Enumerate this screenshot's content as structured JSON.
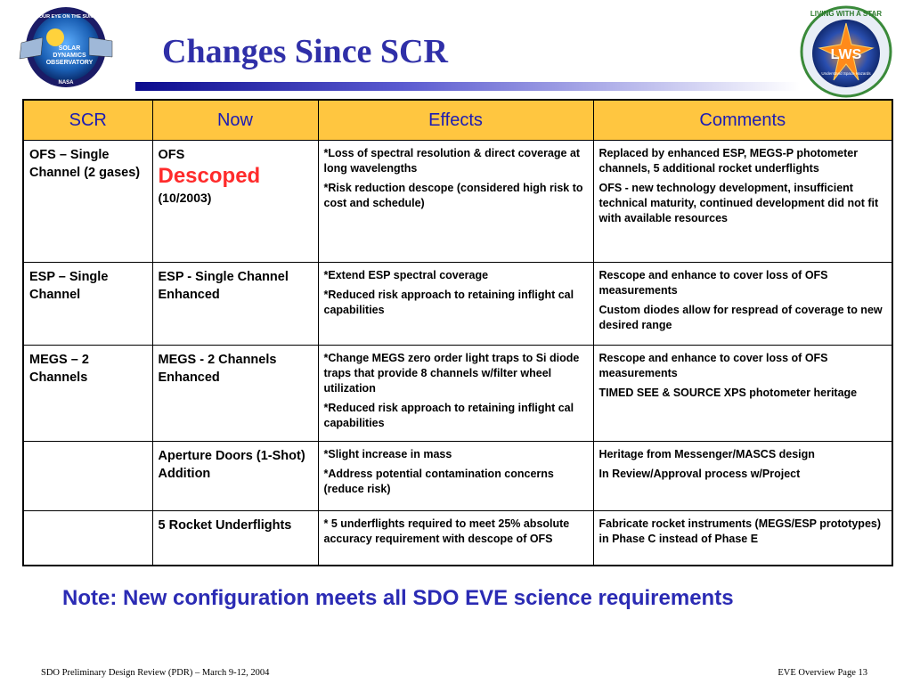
{
  "header": {
    "title": "Changes Since SCR",
    "logo_left_text": [
      "OUR EYE ON THE SUN",
      "SOLAR",
      "DYNAMICS",
      "OBSERVATORY",
      "NASA"
    ],
    "logo_right_text": [
      "LIVING WITH A STAR",
      "LWS",
      "Understand Space Hazards"
    ]
  },
  "table": {
    "headers": [
      "SCR",
      "Now",
      "Effects",
      "Comments"
    ],
    "rows": [
      {
        "scr": "OFS – Single Channel (2 gases)",
        "now_1": "OFS",
        "now_2": "Descoped",
        "now_3": "(10/2003)",
        "effects": [
          "*Loss of spectral resolution & direct coverage at long wavelengths",
          "*Risk reduction descope (considered high risk to cost and schedule)"
        ],
        "comments": [
          "Replaced by enhanced ESP,  MEGS-P photometer channels, 5 additional rocket underflights",
          "OFS - new technology development, insufficient technical maturity, continued development did not fit with available resources"
        ]
      },
      {
        "scr": "ESP – Single Channel",
        "now_1": "ESP - Single Channel Enhanced",
        "effects": [
          "*Extend ESP spectral coverage",
          "*Reduced risk approach to retaining inflight cal capabilities"
        ],
        "comments": [
          "Rescope and enhance to cover loss of OFS measurements",
          "Custom diodes allow for respread of coverage to new desired range"
        ]
      },
      {
        "scr": "MEGS – 2 Channels",
        "now_1": "MEGS - 2 Channels Enhanced",
        "effects": [
          "*Change MEGS zero order light traps to Si diode traps that provide 8 channels w/filter wheel utilization",
          "*Reduced risk approach to retaining inflight cal capabilities"
        ],
        "comments": [
          "Rescope and enhance to cover loss of OFS measurements",
          "TIMED SEE & SOURCE XPS photometer heritage"
        ]
      },
      {
        "scr": "",
        "now_1": "Aperture Doors (1-Shot) Addition",
        "effects": [
          "*Slight increase in mass",
          "*Address potential contamination concerns (reduce risk)"
        ],
        "comments": [
          "Heritage from Messenger/MASCS design",
          "In Review/Approval process w/Project"
        ]
      },
      {
        "scr": "",
        "now_1": "5 Rocket Underflights",
        "effects": [
          "* 5 underflights required to meet 25% absolute accuracy requirement with descope of OFS"
        ],
        "comments": [
          "Fabricate rocket instruments (MEGS/ESP prototypes) in Phase C instead of Phase E"
        ]
      }
    ]
  },
  "note": "Note:  New configuration meets all SDO EVE science requirements",
  "footer": {
    "left": "SDO Preliminary Design Review (PDR) – March 9-12, 2004",
    "right": "EVE Overview Page 13"
  },
  "colors": {
    "title": "#2f2fa8",
    "header_bg": "#ffc640",
    "header_text": "#1c1cb4",
    "descoped": "#ff2b2b",
    "note": "#2b2bb4"
  }
}
